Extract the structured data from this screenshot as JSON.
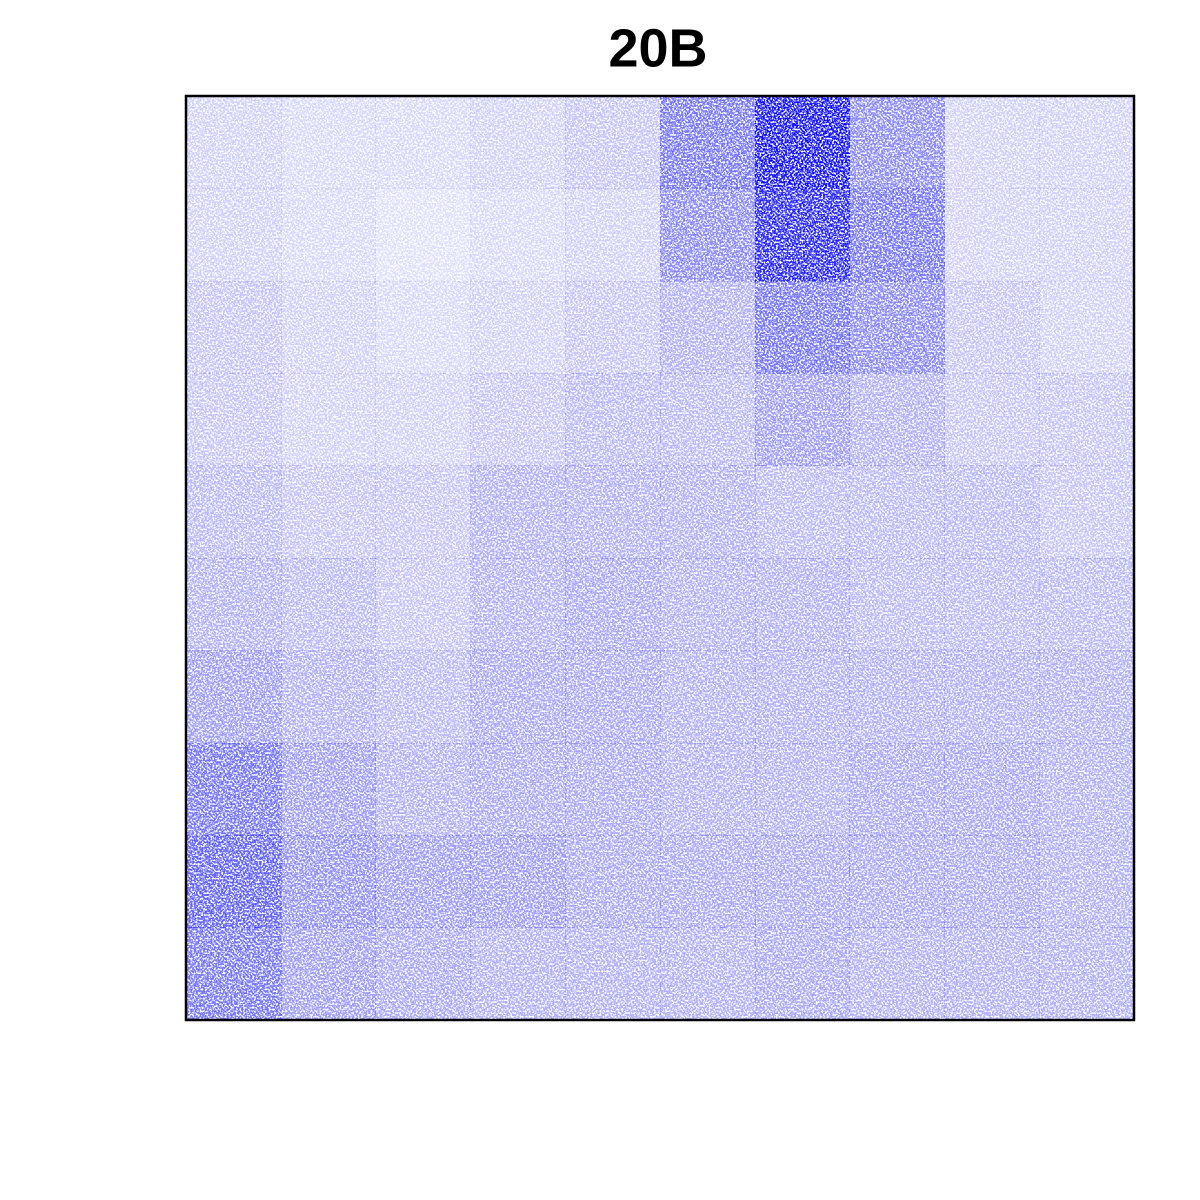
{
  "chart_data": {
    "type": "heatmap",
    "title": "20B",
    "color": "#0000ff",
    "values": [
      [
        0.12,
        0.1,
        0.1,
        0.12,
        0.15,
        0.35,
        0.6,
        0.3,
        0.12,
        0.12
      ],
      [
        0.12,
        0.1,
        0.08,
        0.1,
        0.12,
        0.3,
        0.55,
        0.35,
        0.12,
        0.12
      ],
      [
        0.15,
        0.12,
        0.1,
        0.12,
        0.15,
        0.2,
        0.35,
        0.3,
        0.15,
        0.12
      ],
      [
        0.15,
        0.12,
        0.12,
        0.15,
        0.18,
        0.18,
        0.25,
        0.2,
        0.15,
        0.15
      ],
      [
        0.18,
        0.15,
        0.15,
        0.2,
        0.2,
        0.2,
        0.18,
        0.18,
        0.18,
        0.15
      ],
      [
        0.2,
        0.18,
        0.15,
        0.2,
        0.22,
        0.2,
        0.2,
        0.18,
        0.18,
        0.18
      ],
      [
        0.25,
        0.2,
        0.18,
        0.22,
        0.22,
        0.2,
        0.2,
        0.2,
        0.2,
        0.2
      ],
      [
        0.35,
        0.25,
        0.2,
        0.22,
        0.22,
        0.2,
        0.2,
        0.22,
        0.22,
        0.2
      ],
      [
        0.4,
        0.28,
        0.25,
        0.25,
        0.22,
        0.22,
        0.22,
        0.22,
        0.22,
        0.2
      ],
      [
        0.35,
        0.25,
        0.22,
        0.2,
        0.2,
        0.2,
        0.22,
        0.2,
        0.2,
        0.2
      ]
    ]
  }
}
